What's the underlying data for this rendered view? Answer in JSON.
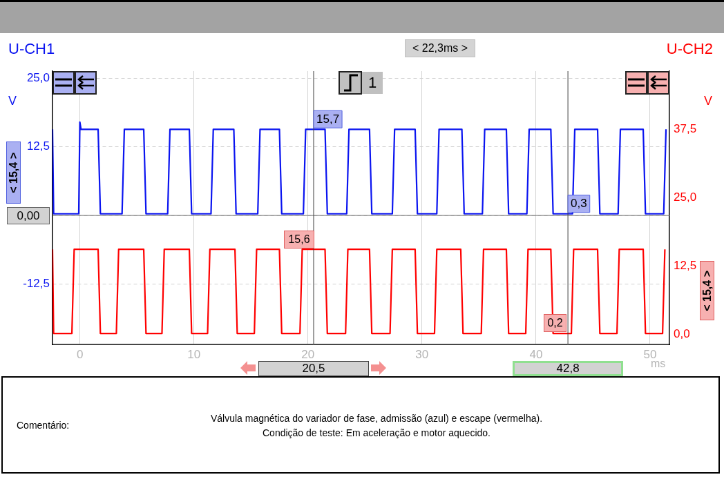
{
  "chart_data": {
    "type": "line",
    "xlabel": "ms",
    "ylabel": "V",
    "y2label": "V",
    "xlim": [
      -2.4,
      51.7
    ],
    "xticks": [
      0,
      10,
      20,
      30,
      40,
      50
    ],
    "ylim": [
      -23.5,
      26.3
    ],
    "yticks": [
      {
        "value": 25,
        "label": "25,0"
      },
      {
        "value": 12.5,
        "label": "12,5"
      },
      {
        "value": 0,
        "label": null
      },
      {
        "value": -12.5,
        "label": "-12,5"
      }
    ],
    "y2lim": [
      -1.8,
      48.2
    ],
    "y2ticks": [
      {
        "value": 37.5,
        "label": "37,5"
      },
      {
        "value": 25,
        "label": "25,0"
      },
      {
        "value": 12.5,
        "label": "12,5"
      },
      {
        "value": 0,
        "label": "0,0"
      }
    ],
    "grid": true,
    "legend": false,
    "marker": "none",
    "line_style": "solid",
    "series": [
      {
        "name": "U-CH1",
        "color": "#0a14f0",
        "x": [
          -2.4,
          -2.3,
          -0.1,
          0.0,
          0.1,
          1.6,
          1.8,
          3.7,
          3.9,
          5.6,
          5.8,
          7.7,
          7.9,
          9.6,
          9.8,
          11.5,
          11.7,
          13.5,
          13.7,
          15.6,
          15.8,
          17.5,
          17.7,
          19.6,
          19.8,
          21.5,
          21.7,
          23.4,
          23.6,
          25.4,
          25.6,
          27.4,
          27.6,
          29.4,
          29.6,
          31.3,
          31.5,
          33.5,
          33.7,
          35.3,
          35.5,
          37.4,
          37.6,
          39.2,
          39.4,
          41.3,
          41.5,
          43.2,
          43.4,
          45.4,
          45.6,
          47.2,
          47.4,
          49.4,
          49.6,
          51.2,
          51.4
        ],
        "values": [
          15.7,
          0.3,
          0.3,
          17.0,
          15.7,
          15.7,
          0.3,
          0.3,
          15.7,
          15.7,
          0.3,
          0.3,
          15.7,
          15.7,
          0.3,
          0.3,
          15.7,
          15.7,
          0.3,
          0.3,
          15.7,
          15.7,
          0.3,
          0.3,
          15.7,
          15.7,
          0.3,
          0.3,
          15.7,
          15.7,
          0.3,
          0.3,
          15.7,
          15.7,
          0.3,
          0.3,
          15.7,
          15.7,
          0.3,
          0.3,
          15.7,
          15.7,
          0.3,
          0.3,
          15.7,
          15.7,
          0.3,
          0.3,
          15.7,
          15.7,
          0.3,
          0.3,
          15.7,
          15.7,
          0.3,
          0.3,
          15.7
        ]
      },
      {
        "name": "U-CH2",
        "color": "#ff0000",
        "axis": "y2",
        "x": [
          -2.4,
          -2.3,
          -0.7,
          -0.5,
          1.6,
          1.8,
          3.2,
          3.4,
          5.6,
          5.8,
          7.2,
          7.4,
          9.6,
          9.8,
          11.2,
          11.4,
          13.6,
          13.8,
          15.3,
          15.5,
          17.5,
          17.7,
          19.3,
          19.5,
          21.5,
          21.7,
          23.3,
          23.5,
          25.4,
          25.6,
          27.2,
          27.4,
          29.4,
          29.6,
          31.1,
          31.3,
          33.4,
          33.6,
          35.2,
          35.4,
          37.4,
          37.6,
          39.1,
          39.3,
          41.3,
          41.5,
          43.1,
          43.3,
          45.4,
          45.6,
          47.1,
          47.3,
          49.4,
          49.6,
          51.1,
          51.3
        ],
        "values": [
          15.6,
          0.2,
          0.2,
          15.6,
          15.6,
          0.2,
          0.2,
          15.6,
          15.6,
          0.2,
          0.2,
          15.6,
          15.6,
          0.2,
          0.2,
          15.6,
          15.6,
          0.2,
          0.2,
          15.6,
          15.6,
          0.2,
          0.2,
          15.6,
          15.6,
          0.2,
          0.2,
          15.6,
          15.6,
          0.2,
          0.2,
          15.6,
          15.6,
          0.2,
          0.2,
          15.6,
          15.6,
          0.2,
          0.2,
          15.6,
          15.6,
          0.2,
          0.2,
          15.6,
          15.6,
          0.2,
          0.2,
          15.6,
          15.6,
          0.2,
          0.2,
          15.6,
          15.6,
          0.2,
          0.2,
          15.6
        ]
      }
    ],
    "ref_lines": [
      {
        "axis": "y",
        "value": 0,
        "label": "0,00"
      },
      {
        "axis": "x",
        "value": 20.5,
        "label": "20,5"
      },
      {
        "axis": "x",
        "value": 42.8,
        "label": "42,8"
      }
    ],
    "annotations": [
      "< 22,3ms >",
      {
        "text": "15,7",
        "x": 20.5,
        "y": 15.7
      },
      {
        "text": "0,3",
        "x": 42.8,
        "y": 0.3
      },
      "15,6",
      "0,2",
      "< 15,4 >",
      "< 15,4 >",
      "Comentário:",
      "Válvula magnética do variador de fase, admissão (azul) e escape (vermelha).",
      "Condição de teste: Em aceleração e motor aquecido.",
      "1"
    ]
  }
}
